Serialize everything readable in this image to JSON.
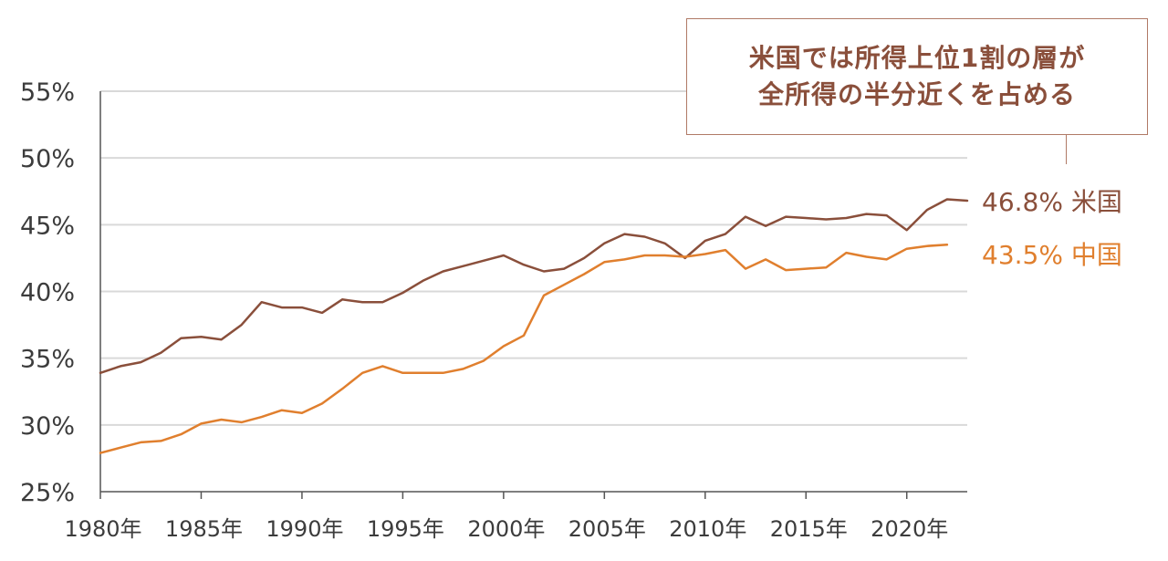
{
  "chart_data": {
    "type": "line",
    "title": "",
    "xlabel": "",
    "ylabel": "",
    "ylim": [
      25,
      55
    ],
    "xlim": [
      1980,
      2023
    ],
    "grid": true,
    "y_ticks": [
      "25%",
      "30%",
      "35%",
      "40%",
      "45%",
      "50%",
      "55%"
    ],
    "y_tick_values": [
      25,
      30,
      35,
      40,
      45,
      50,
      55
    ],
    "x_ticks": [
      "1980年",
      "1985年",
      "1990年",
      "1995年",
      "2000年",
      "2005年",
      "2010年",
      "2015年",
      "2020年"
    ],
    "x_tick_values": [
      1980,
      1985,
      1990,
      1995,
      2000,
      2005,
      2010,
      2015,
      2020
    ],
    "series": [
      {
        "name": "米国",
        "color": "#8a4f3b",
        "end_label": "46.8% 米国",
        "x": [
          1980,
          1981,
          1982,
          1983,
          1984,
          1985,
          1986,
          1987,
          1988,
          1989,
          1990,
          1991,
          1992,
          1993,
          1994,
          1995,
          1996,
          1997,
          1998,
          1999,
          2000,
          2001,
          2002,
          2003,
          2004,
          2005,
          2006,
          2007,
          2008,
          2009,
          2010,
          2011,
          2012,
          2013,
          2014,
          2015,
          2016,
          2017,
          2018,
          2019,
          2020,
          2021,
          2022,
          2023
        ],
        "values": [
          33.9,
          34.4,
          34.7,
          35.4,
          36.5,
          36.6,
          36.4,
          37.5,
          39.2,
          38.8,
          38.8,
          38.4,
          39.4,
          39.2,
          39.2,
          39.9,
          40.8,
          41.5,
          41.9,
          42.3,
          42.7,
          42.0,
          41.5,
          41.7,
          42.5,
          43.6,
          44.3,
          44.1,
          43.6,
          42.5,
          43.8,
          44.3,
          45.6,
          44.9,
          45.6,
          45.5,
          45.4,
          45.5,
          45.8,
          45.7,
          44.6,
          46.1,
          46.9,
          46.8
        ]
      },
      {
        "name": "中国",
        "color": "#e07f2e",
        "end_label": "43.5% 中国",
        "x": [
          1980,
          1981,
          1982,
          1983,
          1984,
          1985,
          1986,
          1987,
          1988,
          1989,
          1990,
          1991,
          1992,
          1993,
          1994,
          1995,
          1996,
          1997,
          1998,
          1999,
          2000,
          2001,
          2002,
          2003,
          2004,
          2005,
          2006,
          2007,
          2008,
          2009,
          2010,
          2011,
          2012,
          2013,
          2014,
          2015,
          2016,
          2017,
          2018,
          2019,
          2020,
          2021,
          2022
        ],
        "values": [
          27.9,
          28.3,
          28.7,
          28.8,
          29.3,
          30.1,
          30.4,
          30.2,
          30.6,
          31.1,
          30.9,
          31.6,
          32.7,
          33.9,
          34.4,
          33.9,
          33.9,
          33.9,
          34.2,
          34.8,
          35.9,
          36.7,
          39.7,
          40.5,
          41.3,
          42.2,
          42.4,
          42.7,
          42.7,
          42.6,
          42.8,
          43.1,
          41.7,
          42.4,
          41.6,
          41.7,
          41.8,
          42.9,
          42.6,
          42.4,
          43.2,
          43.4,
          43.5
        ]
      }
    ],
    "annotation": {
      "lines": [
        "米国では所得上位1割の層が",
        "全所得の半分近くを占める"
      ]
    }
  }
}
